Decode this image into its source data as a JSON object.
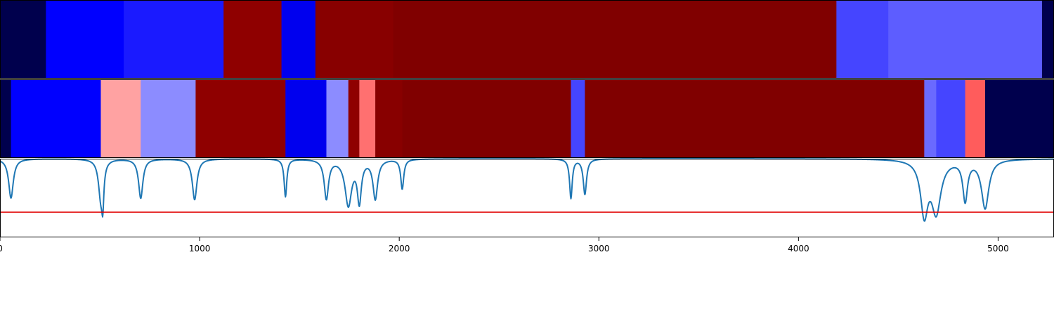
{
  "chart_data": [
    {
      "type": "heatmap",
      "xlim": [
        0,
        5280
      ],
      "grid": false,
      "segments": [
        {
          "start": 0,
          "end": 230,
          "color": "#00004d"
        },
        {
          "start": 230,
          "end": 620,
          "color": "#0000ff"
        },
        {
          "start": 620,
          "end": 1120,
          "color": "#1a1aff"
        },
        {
          "start": 1120,
          "end": 1410,
          "color": "#8f0000"
        },
        {
          "start": 1410,
          "end": 1580,
          "color": "#0000ee"
        },
        {
          "start": 1580,
          "end": 1970,
          "color": "#880000"
        },
        {
          "start": 1970,
          "end": 4190,
          "color": "#800000"
        },
        {
          "start": 4190,
          "end": 4450,
          "color": "#4545ff"
        },
        {
          "start": 4450,
          "end": 5220,
          "color": "#5d5dff"
        },
        {
          "start": 5220,
          "end": 5280,
          "color": "#00004d"
        }
      ]
    },
    {
      "type": "heatmap",
      "xlim": [
        0,
        5280
      ],
      "grid": false,
      "segments": [
        {
          "start": 0,
          "end": 55,
          "color": "#00004d"
        },
        {
          "start": 55,
          "end": 505,
          "color": "#0000ff"
        },
        {
          "start": 505,
          "end": 705,
          "color": "#ffa2a2"
        },
        {
          "start": 705,
          "end": 980,
          "color": "#8c8cff"
        },
        {
          "start": 980,
          "end": 1430,
          "color": "#8f0000"
        },
        {
          "start": 1430,
          "end": 1635,
          "color": "#0000ee"
        },
        {
          "start": 1635,
          "end": 1745,
          "color": "#8c8cff"
        },
        {
          "start": 1745,
          "end": 1800,
          "color": "#8f0000"
        },
        {
          "start": 1800,
          "end": 1880,
          "color": "#ff7070"
        },
        {
          "start": 1880,
          "end": 2015,
          "color": "#880000"
        },
        {
          "start": 2015,
          "end": 2860,
          "color": "#800000"
        },
        {
          "start": 2860,
          "end": 2930,
          "color": "#4545ff"
        },
        {
          "start": 2930,
          "end": 4630,
          "color": "#800000"
        },
        {
          "start": 4630,
          "end": 4690,
          "color": "#6a6aff"
        },
        {
          "start": 4690,
          "end": 4835,
          "color": "#4545ff"
        },
        {
          "start": 4835,
          "end": 4935,
          "color": "#ff5c5c"
        },
        {
          "start": 4935,
          "end": 5280,
          "color": "#00004d"
        }
      ]
    },
    {
      "type": "line",
      "xlim": [
        0,
        5280
      ],
      "ylim": [
        0,
        1
      ],
      "grid": false,
      "threshold": 0.32,
      "threshold_color": "#e00000",
      "line_color": "#1f77b4",
      "baseline": 1.0,
      "dips": [
        {
          "x": 55,
          "min": 0.5,
          "width": 14
        },
        {
          "x": 505,
          "min": 0.51,
          "width": 14
        },
        {
          "x": 515,
          "min": 0.6,
          "width": 6
        },
        {
          "x": 705,
          "min": 0.5,
          "width": 13
        },
        {
          "x": 975,
          "min": 0.48,
          "width": 14
        },
        {
          "x": 1430,
          "min": 0.52,
          "width": 8
        },
        {
          "x": 1635,
          "min": 0.5,
          "width": 13
        },
        {
          "x": 1745,
          "min": 0.42,
          "width": 20
        },
        {
          "x": 1800,
          "min": 0.48,
          "width": 12
        },
        {
          "x": 1880,
          "min": 0.5,
          "width": 14
        },
        {
          "x": 2015,
          "min": 0.62,
          "width": 9
        },
        {
          "x": 2860,
          "min": 0.5,
          "width": 8
        },
        {
          "x": 2930,
          "min": 0.55,
          "width": 10
        },
        {
          "x": 4630,
          "min": 0.33,
          "width": 22
        },
        {
          "x": 4690,
          "min": 0.35,
          "width": 28
        },
        {
          "x": 4835,
          "min": 0.49,
          "width": 14
        },
        {
          "x": 4935,
          "min": 0.38,
          "width": 22
        }
      ],
      "xticks": [
        0,
        1000,
        2000,
        3000,
        4000,
        5000
      ],
      "xticklabels": [
        "0",
        "1000",
        "2000",
        "3000",
        "4000",
        "5000"
      ]
    }
  ]
}
